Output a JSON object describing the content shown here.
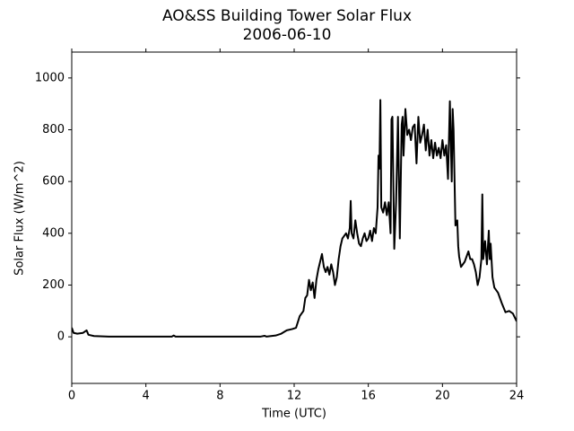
{
  "chart_data": {
    "type": "line",
    "title": "AO&SS Building Tower Solar Flux",
    "subtitle": "2006-06-10",
    "x_label": "Time (UTC)",
    "y_label": "Solar Flux (W/m^2)",
    "xlim": [
      0,
      24
    ],
    "xticks": [
      0,
      4,
      8,
      12,
      16,
      20,
      24
    ],
    "ylim": [
      -180,
      1100
    ],
    "yticks": [
      0,
      200,
      400,
      600,
      800,
      1000
    ],
    "grid": false,
    "x": [
      0,
      0.1,
      0.3,
      0.6,
      0.8,
      0.9,
      1.2,
      2,
      5.4,
      5.5,
      5.6,
      10.2,
      10.4,
      10.5,
      11,
      11.3,
      11.6,
      11.9,
      12.1,
      12.3,
      12.5,
      12.6,
      12.7,
      12.8,
      12.9,
      13.0,
      13.1,
      13.2,
      13.3,
      13.4,
      13.5,
      13.6,
      13.7,
      13.8,
      13.9,
      14.0,
      14.1,
      14.2,
      14.3,
      14.4,
      14.5,
      14.6,
      14.8,
      14.9,
      15.0,
      15.05,
      15.1,
      15.2,
      15.3,
      15.4,
      15.5,
      15.6,
      15.7,
      15.8,
      15.9,
      16.0,
      16.1,
      16.2,
      16.3,
      16.4,
      16.5,
      16.55,
      16.6,
      16.65,
      16.7,
      16.8,
      16.9,
      17.0,
      17.1,
      17.2,
      17.25,
      17.3,
      17.4,
      17.5,
      17.6,
      17.7,
      17.8,
      17.85,
      17.9,
      18.0,
      18.1,
      18.2,
      18.3,
      18.4,
      18.5,
      18.6,
      18.7,
      18.8,
      18.9,
      19.0,
      19.1,
      19.2,
      19.3,
      19.4,
      19.5,
      19.6,
      19.7,
      19.8,
      19.9,
      20.0,
      20.1,
      20.2,
      20.3,
      20.4,
      20.5,
      20.55,
      20.6,
      20.7,
      20.8,
      20.85,
      20.9,
      21.0,
      21.1,
      21.2,
      21.3,
      21.4,
      21.5,
      21.6,
      21.7,
      21.8,
      21.9,
      22.0,
      22.1,
      22.15,
      22.2,
      22.3,
      22.4,
      22.5,
      22.55,
      22.6,
      22.7,
      22.8,
      23.0,
      23.2,
      23.4,
      23.6,
      23.8,
      24
    ],
    "series": [
      {
        "name": "Solar Flux",
        "color": "#000000",
        "values": [
          35,
          15,
          12,
          15,
          25,
          8,
          3,
          1,
          1,
          5,
          1,
          1,
          4,
          1,
          5,
          12,
          25,
          30,
          35,
          80,
          100,
          150,
          160,
          220,
          180,
          210,
          150,
          220,
          260,
          290,
          320,
          270,
          250,
          270,
          240,
          280,
          250,
          200,
          230,
          300,
          350,
          380,
          400,
          380,
          420,
          525,
          400,
          380,
          450,
          400,
          360,
          350,
          380,
          400,
          370,
          380,
          410,
          370,
          420,
          400,
          500,
          700,
          650,
          915,
          500,
          480,
          520,
          470,
          520,
          400,
          840,
          850,
          340,
          520,
          850,
          380,
          820,
          850,
          700,
          880,
          780,
          800,
          760,
          810,
          820,
          670,
          850,
          750,
          780,
          820,
          720,
          800,
          700,
          760,
          690,
          750,
          700,
          730,
          690,
          760,
          700,
          740,
          610,
          910,
          600,
          880,
          800,
          430,
          450,
          350,
          310,
          270,
          280,
          290,
          310,
          330,
          300,
          300,
          280,
          250,
          200,
          230,
          300,
          550,
          300,
          370,
          280,
          410,
          300,
          360,
          230,
          190,
          170,
          130,
          95,
          100,
          90,
          60
        ]
      }
    ]
  }
}
